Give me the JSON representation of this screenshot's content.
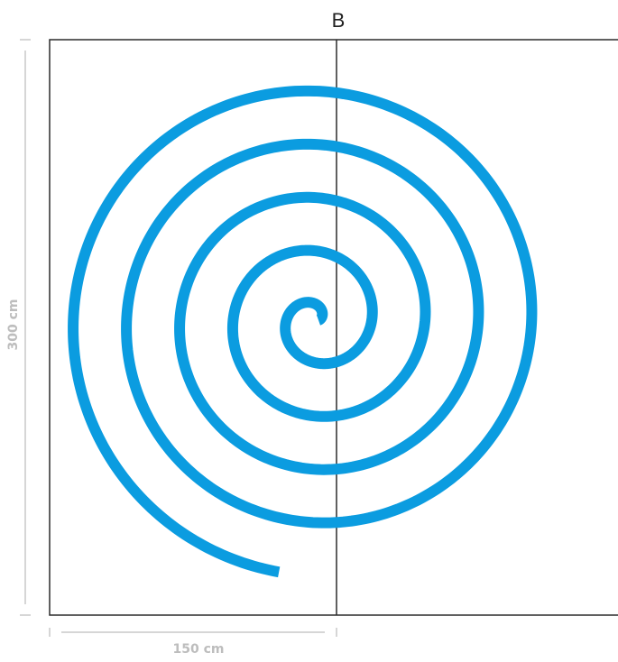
{
  "panel": {
    "label": "B"
  },
  "dimensions": {
    "width": "150 cm",
    "height": "300 cm"
  },
  "colors": {
    "spiral": "#0b9ce0",
    "frame": "#2b2b2b",
    "dimension": "#bdbdbd"
  }
}
